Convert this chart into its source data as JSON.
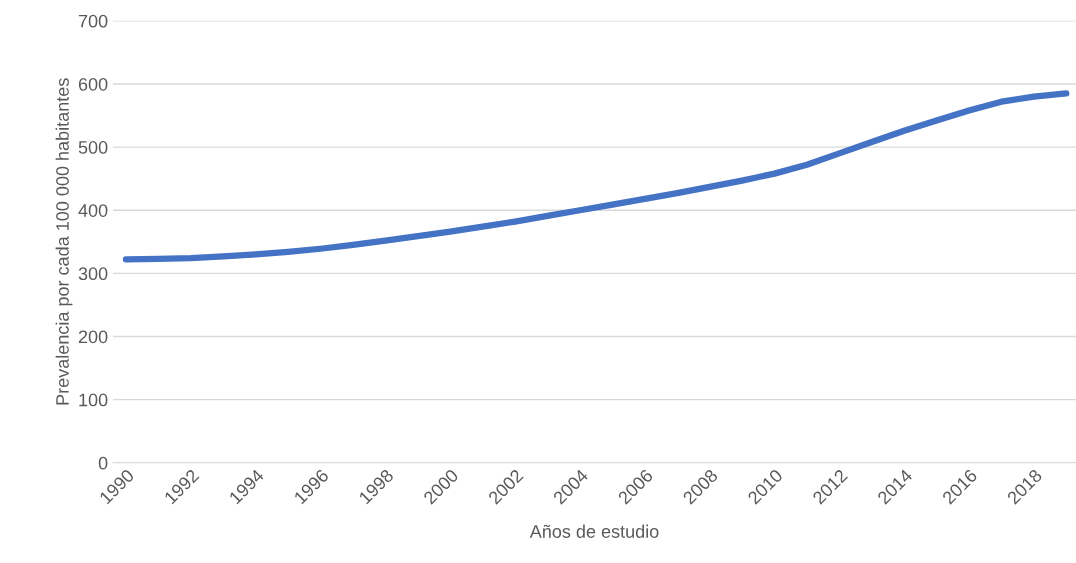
{
  "chart_data": {
    "type": "line",
    "xlabel": "Años de estudio",
    "ylabel": "Prevalencia por cada 100 000 habitantes",
    "categories": [
      "1990",
      null,
      "1992",
      null,
      "1994",
      null,
      "1996",
      null,
      "1998",
      null,
      "2000",
      null,
      "2002",
      null,
      "2004",
      null,
      "2006",
      null,
      "2008",
      null,
      "2010",
      null,
      "2012",
      null,
      "2014",
      null,
      "2016",
      null,
      "2018",
      null
    ],
    "series": [
      {
        "color": "#4472c4",
        "values": [
          322,
          323,
          324,
          327,
          330,
          334,
          339,
          345,
          352,
          359,
          366,
          374,
          382,
          391,
          400,
          409,
          418,
          427,
          437,
          447,
          458,
          472,
          490,
          508,
          526,
          542,
          558,
          572,
          580,
          585
        ]
      }
    ],
    "ylim": [
      0,
      700
    ],
    "yticks": [
      0,
      100,
      200,
      300,
      400,
      500,
      600,
      700
    ],
    "grid": "y",
    "legend": false,
    "marker": "none",
    "line_style": "solid"
  }
}
